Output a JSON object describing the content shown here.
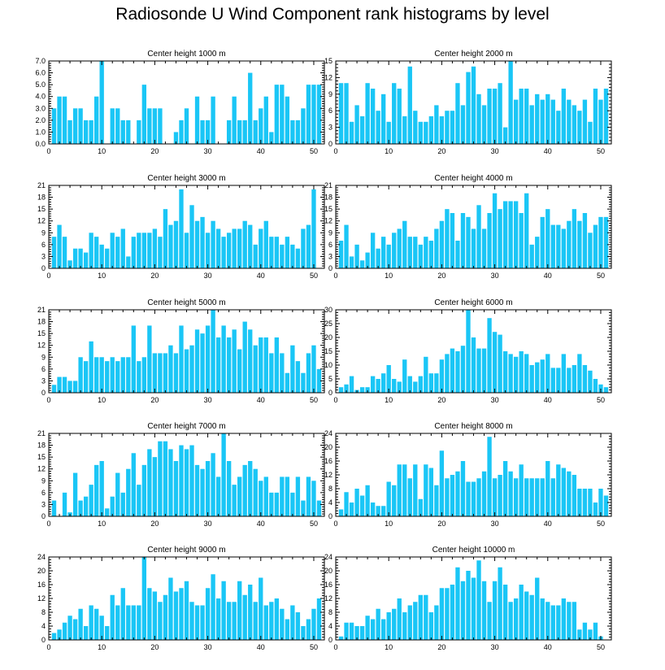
{
  "title": "Radiosonde U Wind Component rank histograms by level",
  "colors": {
    "bar": "#1ac6f6",
    "axis": "#000000"
  },
  "chart_data": [
    {
      "type": "bar",
      "title": "Center height 1000 m",
      "x_start": 1,
      "xlim": [
        0,
        52
      ],
      "xticks": [
        0,
        10,
        20,
        30,
        40,
        50
      ],
      "ylim": [
        0,
        7
      ],
      "yticks": [
        "0.0",
        "1.0",
        "2.0",
        "3.0",
        "4.0",
        "5.0",
        "6.0",
        "7.0"
      ],
      "values": [
        3,
        4,
        4,
        2,
        3,
        3,
        2,
        2,
        4,
        7,
        0,
        3,
        3,
        2,
        2,
        0,
        2,
        5,
        3,
        3,
        3,
        0,
        0,
        1,
        2,
        3,
        0,
        4,
        2,
        2,
        4,
        0,
        0,
        2,
        4,
        2,
        2,
        6,
        2,
        3,
        4,
        1,
        5,
        5,
        4,
        2,
        2,
        3,
        5,
        5,
        5
      ]
    },
    {
      "type": "bar",
      "title": "Center height 2000 m",
      "x_start": 1,
      "xlim": [
        0,
        52
      ],
      "xticks": [
        0,
        10,
        20,
        30,
        40,
        50
      ],
      "ylim": [
        0,
        15
      ],
      "yticks": [
        "0",
        "3",
        "6",
        "9",
        "12",
        "15"
      ],
      "values": [
        11,
        11,
        4,
        7,
        5,
        11,
        10,
        6,
        9,
        4,
        11,
        10,
        5,
        14,
        6,
        4,
        4,
        5,
        7,
        5,
        6,
        6,
        11,
        7,
        13,
        14,
        9,
        7,
        10,
        10,
        11,
        3,
        15,
        8,
        10,
        10,
        7,
        9,
        8,
        9,
        8,
        6,
        10,
        8,
        7,
        6,
        8,
        4,
        10,
        8,
        10
      ]
    },
    {
      "type": "bar",
      "title": "Center height 3000 m",
      "x_start": 1,
      "xlim": [
        0,
        52
      ],
      "xticks": [
        0,
        10,
        20,
        30,
        40,
        50
      ],
      "ylim": [
        0,
        21
      ],
      "yticks": [
        "0",
        "3",
        "6",
        "9",
        "12",
        "15",
        "18",
        "21"
      ],
      "values": [
        8,
        11,
        8,
        2,
        5,
        5,
        4,
        9,
        8,
        6,
        5,
        9,
        8,
        10,
        3,
        8,
        9,
        9,
        9,
        10,
        8,
        15,
        11,
        12,
        20,
        9,
        16,
        12,
        13,
        9,
        12,
        10,
        8,
        9,
        10,
        10,
        12,
        11,
        6,
        10,
        12,
        8,
        8,
        6,
        8,
        6,
        5,
        10,
        11,
        20
      ]
    },
    {
      "type": "bar",
      "title": "Center height 4000 m",
      "x_start": 1,
      "xlim": [
        0,
        52
      ],
      "xticks": [
        0,
        10,
        20,
        30,
        40,
        50
      ],
      "ylim": [
        0,
        21
      ],
      "yticks": [
        "0",
        "3",
        "6",
        "9",
        "12",
        "15",
        "18",
        "21"
      ],
      "values": [
        7,
        11,
        3,
        6,
        2,
        4,
        9,
        5,
        8,
        6,
        9,
        10,
        12,
        8,
        8,
        6,
        8,
        7,
        10,
        12,
        15,
        14,
        7,
        14,
        13,
        10,
        16,
        10,
        14,
        19,
        15,
        17,
        17,
        17,
        14,
        19,
        6,
        8,
        13,
        15,
        11,
        11,
        10,
        12,
        15,
        12,
        14,
        9,
        11,
        13,
        13
      ]
    },
    {
      "type": "bar",
      "title": "Center height 5000 m",
      "x_start": 1,
      "xlim": [
        0,
        52
      ],
      "xticks": [
        0,
        10,
        20,
        30,
        40,
        50
      ],
      "ylim": [
        0,
        21
      ],
      "yticks": [
        "0",
        "3",
        "6",
        "9",
        "12",
        "15",
        "18",
        "21"
      ],
      "values": [
        2,
        4,
        4,
        3,
        3,
        9,
        8,
        13,
        9,
        9,
        8,
        9,
        8,
        9,
        9,
        17,
        8,
        9,
        17,
        10,
        10,
        10,
        12,
        10,
        17,
        11,
        12,
        16,
        15,
        17,
        21,
        14,
        17,
        14,
        16,
        11,
        18,
        16,
        12,
        14,
        14,
        10,
        14,
        10,
        5,
        12,
        8,
        5,
        10,
        12,
        6
      ]
    },
    {
      "type": "bar",
      "title": "Center height 6000 m",
      "x_start": 1,
      "xlim": [
        0,
        52
      ],
      "xticks": [
        0,
        10,
        20,
        30,
        40,
        50
      ],
      "ylim": [
        0,
        30
      ],
      "yticks": [
        "0",
        "5",
        "10",
        "15",
        "20",
        "25",
        "30"
      ],
      "values": [
        2,
        3,
        6,
        1,
        2,
        2,
        6,
        5,
        7,
        10,
        5,
        4,
        12,
        6,
        4,
        6,
        13,
        7,
        7,
        12,
        14,
        16,
        15,
        17,
        30,
        20,
        16,
        16,
        27,
        22,
        21,
        15,
        14,
        13,
        15,
        14,
        10,
        11,
        12,
        14,
        9,
        9,
        14,
        9,
        10,
        14,
        10,
        8,
        5,
        3,
        2
      ]
    },
    {
      "type": "bar",
      "title": "Center height 7000 m",
      "x_start": 1,
      "xlim": [
        0,
        52
      ],
      "xticks": [
        0,
        10,
        20,
        30,
        40,
        50
      ],
      "ylim": [
        0,
        21
      ],
      "yticks": [
        "0",
        "3",
        "6",
        "9",
        "12",
        "15",
        "18",
        "21"
      ],
      "values": [
        4,
        0,
        6,
        1,
        11,
        4,
        5,
        8,
        13,
        14,
        2,
        5,
        11,
        6,
        12,
        16,
        8,
        13,
        17,
        15,
        19,
        19,
        17,
        14,
        18,
        17,
        18,
        13,
        12,
        14,
        16,
        10,
        21,
        14,
        8,
        10,
        13,
        14,
        12,
        9,
        10,
        6,
        6,
        10,
        10,
        6,
        10,
        4,
        10,
        9,
        4
      ]
    },
    {
      "type": "bar",
      "title": "Center height 8000 m",
      "x_start": 1,
      "xlim": [
        0,
        52
      ],
      "xticks": [
        0,
        10,
        20,
        30,
        40,
        50
      ],
      "ylim": [
        0,
        24
      ],
      "yticks": [
        "0",
        "4",
        "8",
        "12",
        "16",
        "20",
        "24"
      ],
      "values": [
        2,
        7,
        4,
        8,
        6,
        9,
        4,
        3,
        3,
        10,
        9,
        15,
        15,
        11,
        15,
        5,
        15,
        14,
        9,
        19,
        11,
        12,
        13,
        16,
        10,
        10,
        11,
        13,
        23,
        11,
        12,
        16,
        13,
        11,
        15,
        11,
        11,
        11,
        11,
        16,
        11,
        15,
        14,
        13,
        12,
        8,
        8,
        8,
        4,
        8,
        6
      ]
    },
    {
      "type": "bar",
      "title": "Center height 9000 m",
      "x_start": 1,
      "xlim": [
        0,
        52
      ],
      "xticks": [
        0,
        10,
        20,
        30,
        40,
        50
      ],
      "ylim": [
        0,
        24
      ],
      "yticks": [
        "0",
        "4",
        "8",
        "12",
        "16",
        "20",
        "24"
      ],
      "values": [
        2,
        3,
        5,
        7,
        6,
        9,
        4,
        10,
        9,
        7,
        4,
        13,
        10,
        15,
        10,
        10,
        10,
        24,
        15,
        14,
        11,
        13,
        18,
        14,
        15,
        17,
        11,
        10,
        10,
        15,
        19,
        12,
        17,
        11,
        11,
        17,
        13,
        16,
        11,
        18,
        10,
        11,
        12,
        9,
        6,
        10,
        8,
        4,
        6,
        9,
        12
      ]
    },
    {
      "type": "bar",
      "title": "Center height 10000 m",
      "x_start": 1,
      "xlim": [
        0,
        52
      ],
      "xticks": [
        0,
        10,
        20,
        30,
        40,
        50
      ],
      "ylim": [
        0,
        24
      ],
      "yticks": [
        "0",
        "4",
        "8",
        "12",
        "16",
        "20",
        "24"
      ],
      "values": [
        1,
        5,
        5,
        4,
        4,
        7,
        6,
        9,
        6,
        8,
        9,
        12,
        8,
        10,
        11,
        13,
        13,
        8,
        10,
        15,
        15,
        16,
        21,
        17,
        20,
        18,
        23,
        17,
        11,
        17,
        21,
        16,
        11,
        12,
        16,
        14,
        13,
        18,
        12,
        11,
        10,
        10,
        12,
        11,
        11,
        3,
        5,
        3,
        5,
        1
      ]
    }
  ]
}
